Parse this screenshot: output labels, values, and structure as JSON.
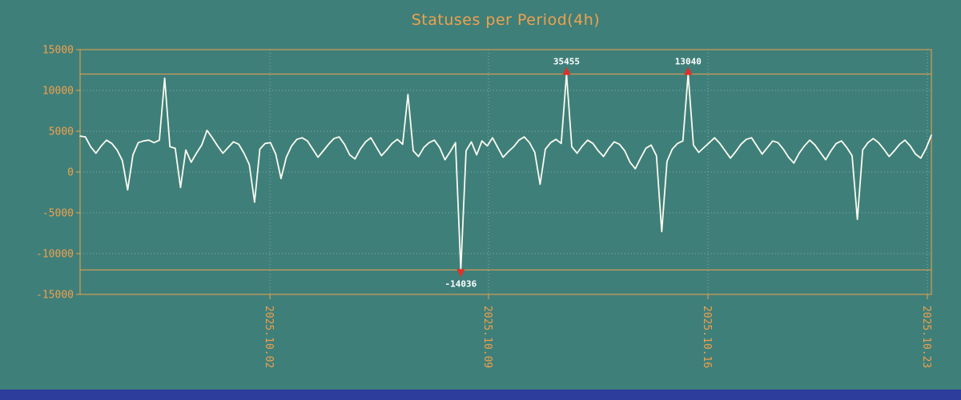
{
  "window": {
    "background_color": "#3F7F7A",
    "taskbar_color": "#2C3D9C"
  },
  "chart_data": {
    "type": "line",
    "title": "Statuses per Period(4h)",
    "series_name": "statuses",
    "line_color": "#FCFBEF",
    "accent_color": "#EFA14B",
    "grid_color": "rgba(222,233,230,0.45)",
    "marker_color": "#E03028",
    "marker_label_color": "#FFFFFF",
    "ylim": [
      -15000,
      15000
    ],
    "y_ticks": [
      15000,
      10000,
      5000,
      0,
      -5000,
      -10000,
      -15000
    ],
    "limit_lines": [
      12000,
      -12000
    ],
    "clip": 12000,
    "period_hours": 4,
    "x_ticks": [
      {
        "pos": 0.223,
        "label": "2025.10.02"
      },
      {
        "pos": 0.4797,
        "label": "2025.10.09"
      },
      {
        "pos": 0.7375,
        "label": "2025.10.16"
      },
      {
        "pos": 0.9953,
        "label": "2025.10.23"
      }
    ],
    "values": [
      4400,
      4300,
      3100,
      2300,
      3200,
      3900,
      3500,
      2700,
      1400,
      -2200,
      2100,
      3600,
      3800,
      3900,
      3600,
      3900,
      11500,
      3100,
      2900,
      -1900,
      2700,
      1200,
      2300,
      3300,
      5100,
      4200,
      3200,
      2300,
      3000,
      3700,
      3400,
      2300,
      900,
      -3700,
      2800,
      3500,
      3600,
      2200,
      -800,
      1800,
      3200,
      4000,
      4200,
      3800,
      2800,
      1800,
      2600,
      3400,
      4100,
      4300,
      3400,
      2100,
      1600,
      2800,
      3700,
      4200,
      3100,
      2000,
      2700,
      3500,
      4000,
      3400,
      9500,
      2600,
      1900,
      3000,
      3600,
      3900,
      3000,
      1500,
      2500,
      3600,
      -14036,
      2600,
      3700,
      2100,
      3800,
      3200,
      4200,
      3000,
      1800,
      2500,
      3100,
      3900,
      4300,
      3600,
      2400,
      -1500,
      2800,
      3600,
      4000,
      3500,
      35455,
      3100,
      2300,
      3200,
      3900,
      3500,
      2600,
      1900,
      2900,
      3700,
      3400,
      2600,
      1200,
      400,
      1700,
      2900,
      3300,
      2000,
      -7300,
      1300,
      2800,
      3500,
      3800,
      13040,
      3300,
      2400,
      3000,
      3600,
      4200,
      3500,
      2600,
      1700,
      2500,
      3400,
      4000,
      4200,
      3200,
      2200,
      3000,
      3800,
      3600,
      2800,
      1800,
      1100,
      2300,
      3200,
      3900,
      3300,
      2400,
      1500,
      2600,
      3500,
      3800,
      3000,
      2000,
      -5800,
      2700,
      3600,
      4100,
      3600,
      2800,
      1900,
      2600,
      3400,
      3900,
      3200,
      2200,
      1700,
      2900,
      4500
    ],
    "annotations": [
      {
        "kind": "min",
        "index": 72,
        "label": "-14036"
      },
      {
        "kind": "max",
        "index": 92,
        "label": "35455"
      },
      {
        "kind": "max",
        "index": 115,
        "label": "13040"
      }
    ]
  }
}
